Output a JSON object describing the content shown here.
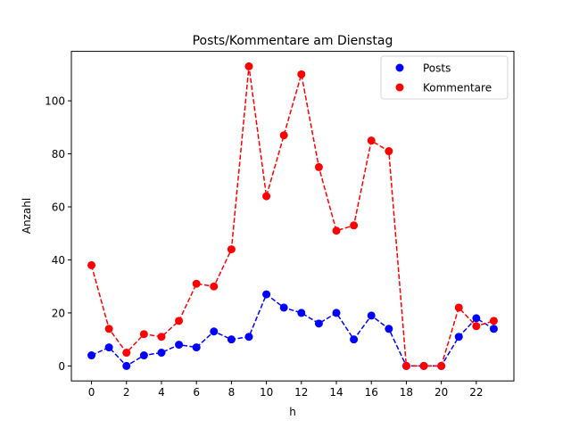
{
  "chart_data": {
    "type": "line",
    "title": "Posts/Kommentare am Dienstag",
    "xlabel": "h",
    "ylabel": "Anzahl",
    "x": [
      0,
      1,
      2,
      3,
      4,
      5,
      6,
      7,
      8,
      9,
      10,
      11,
      12,
      13,
      14,
      15,
      16,
      17,
      18,
      19,
      20,
      21,
      22,
      23
    ],
    "xticks": [
      0,
      2,
      4,
      6,
      8,
      10,
      12,
      14,
      16,
      18,
      20,
      22
    ],
    "yticks": [
      0,
      20,
      40,
      60,
      80,
      100
    ],
    "xlim": [
      -1.15,
      24.15
    ],
    "ylim": [
      -5.65,
      118.65
    ],
    "grid": false,
    "legend_position": "upper right",
    "series": [
      {
        "name": "Posts",
        "color": "#0000ff",
        "linestyle": "dashed",
        "marker": "o",
        "values": [
          4,
          7,
          0,
          4,
          5,
          8,
          7,
          13,
          10,
          11,
          27,
          22,
          20,
          16,
          20,
          10,
          19,
          14,
          0,
          0,
          0,
          11,
          18,
          14
        ]
      },
      {
        "name": "Kommentare",
        "color": "#ff0000",
        "linestyle": "dashed",
        "marker": "o",
        "values": [
          38,
          14,
          5,
          12,
          11,
          17,
          31,
          30,
          44,
          113,
          64,
          87,
          110,
          75,
          51,
          53,
          85,
          81,
          0,
          0,
          0,
          22,
          15,
          17
        ]
      }
    ]
  }
}
